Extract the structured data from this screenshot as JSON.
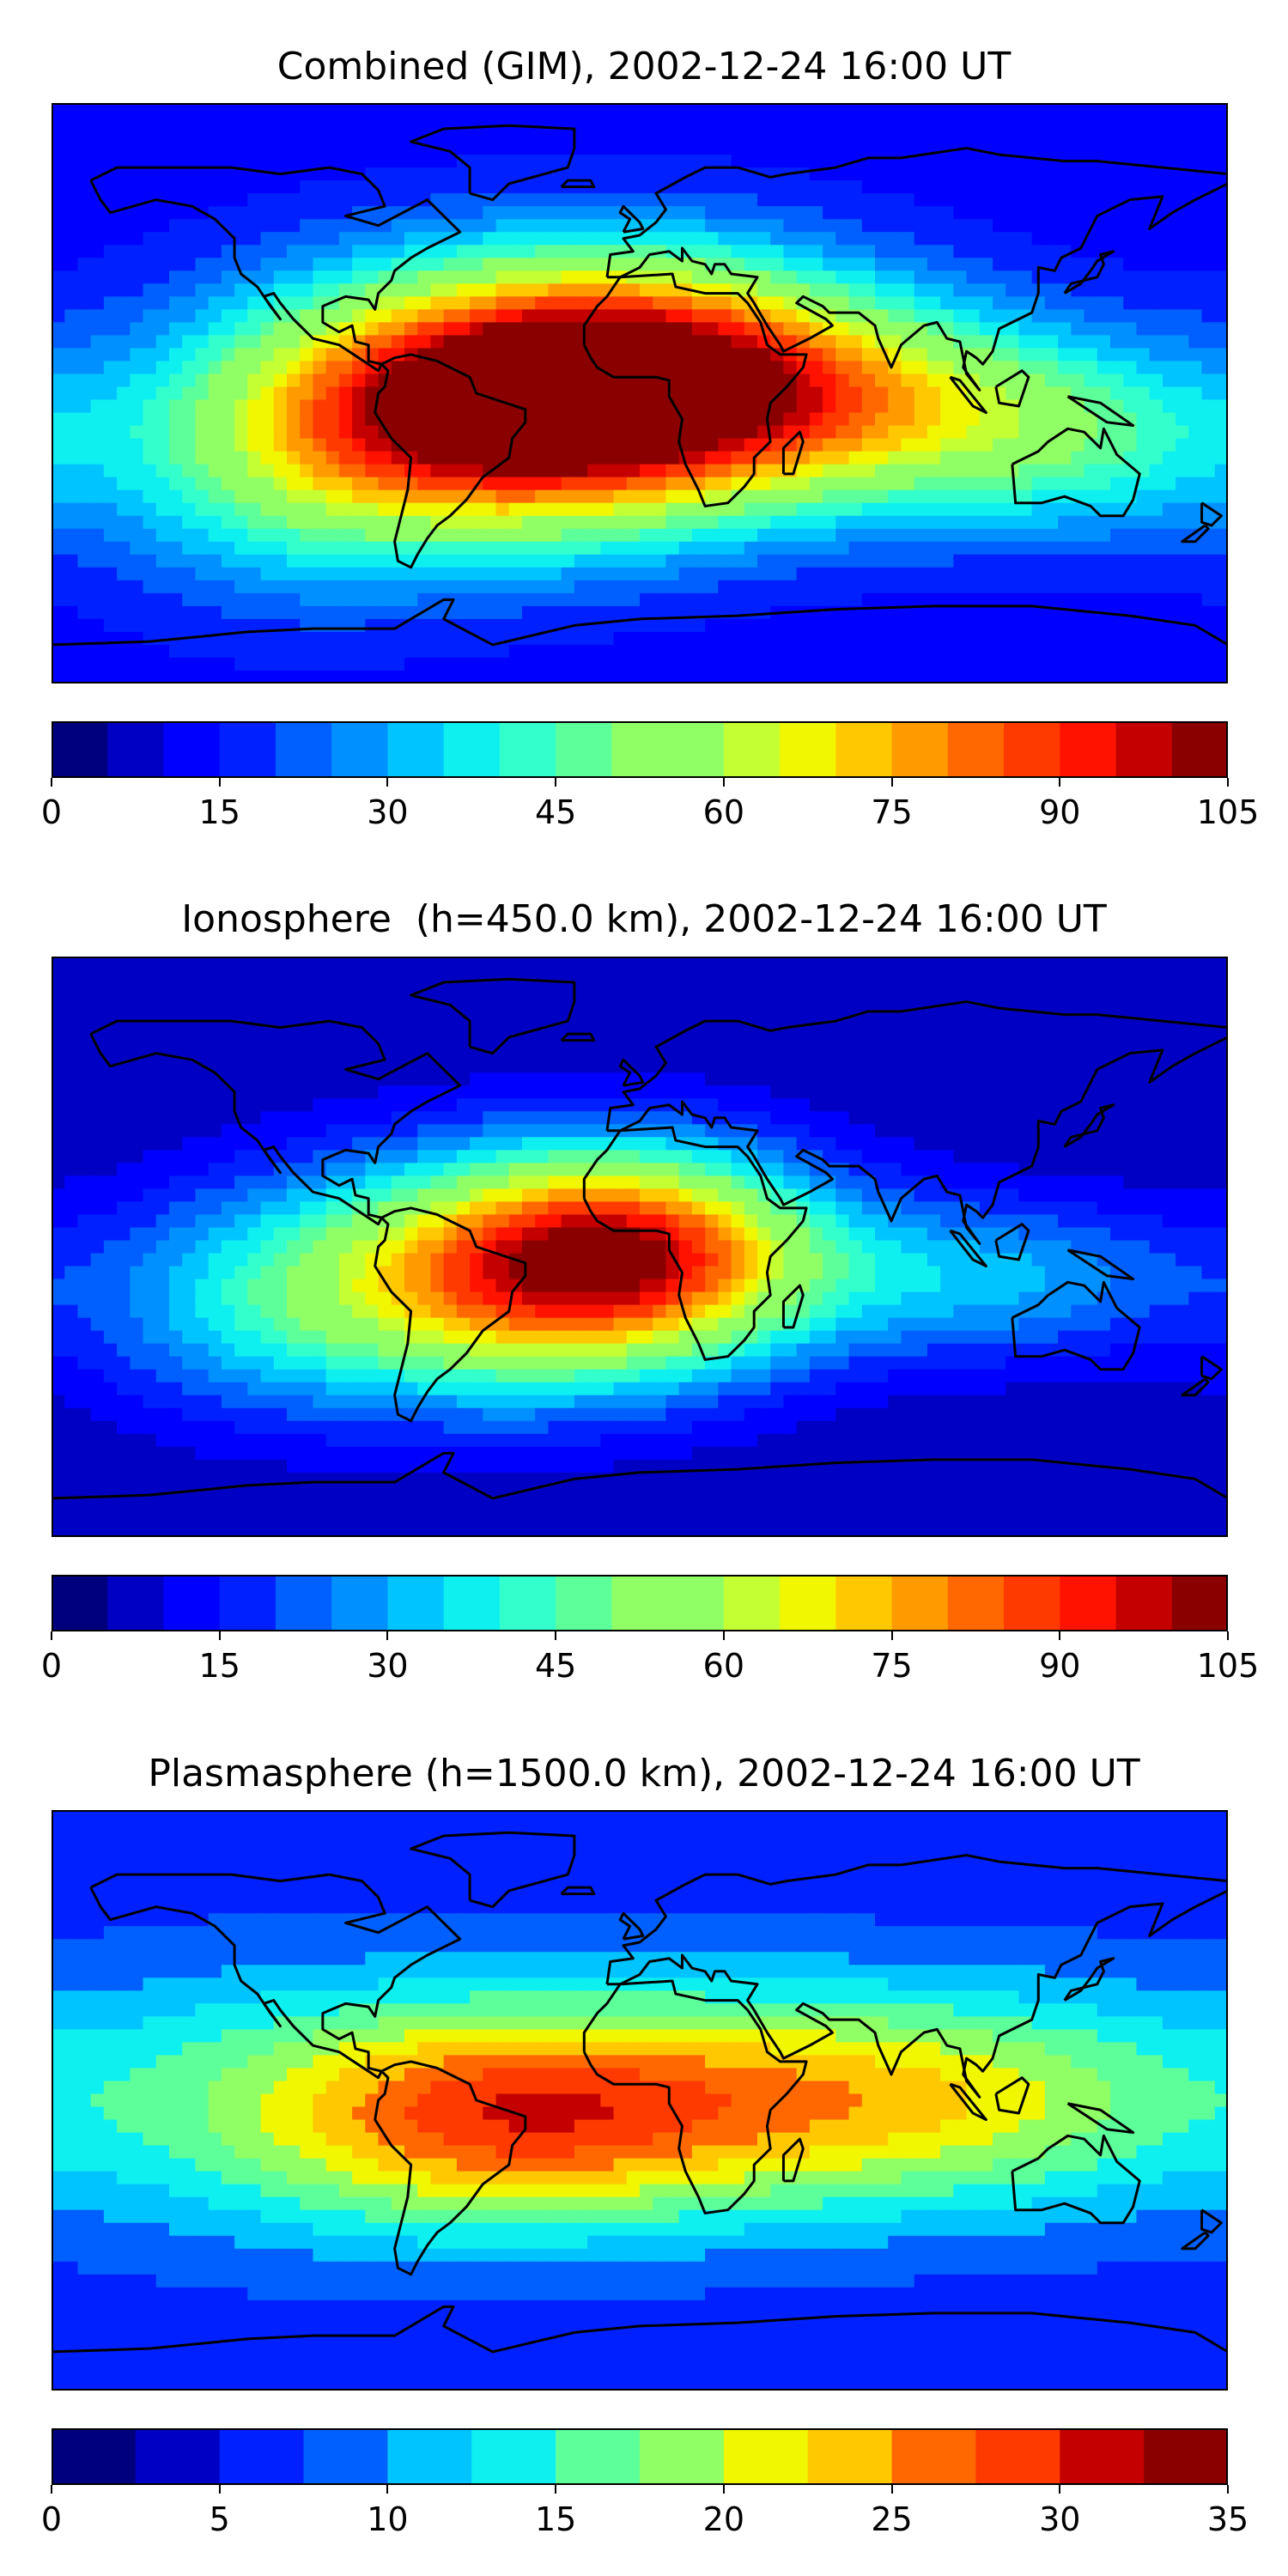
{
  "panels": [
    {
      "title": "Combined (GIM), 2002-12-24 16:00 UT",
      "colorbar": {
        "min": 0,
        "max": 105,
        "step": 5,
        "ticks": [
          "0",
          "15",
          "30",
          "45",
          "60",
          "75",
          "90",
          "105"
        ]
      },
      "field": [
        {
          "lon": -50,
          "lat": -5,
          "value": 88,
          "spread_lon": 55,
          "spread_lat": 28
        },
        {
          "lon": 5,
          "lat": 5,
          "value": 82,
          "spread_lon": 50,
          "spread_lat": 26
        },
        {
          "lon": 80,
          "lat": -5,
          "value": 45,
          "spread_lon": 45,
          "spread_lat": 22
        },
        {
          "lon": 140,
          "lat": -15,
          "value": 35,
          "spread_lon": 40,
          "spread_lat": 22
        },
        {
          "lon": -110,
          "lat": -25,
          "value": 30,
          "spread_lon": 40,
          "spread_lat": 30
        }
      ],
      "base_value": 12
    },
    {
      "title": "Ionosphere  (h=450.0 km), 2002-12-24 16:00 UT",
      "colorbar": {
        "min": 0,
        "max": 105,
        "step": 5,
        "ticks": [
          "0",
          "15",
          "30",
          "45",
          "60",
          "75",
          "90",
          "105"
        ]
      },
      "field": [
        {
          "lon": -40,
          "lat": -10,
          "value": 68,
          "spread_lon": 55,
          "spread_lat": 26
        },
        {
          "lon": 0,
          "lat": 0,
          "value": 58,
          "spread_lon": 40,
          "spread_lat": 22
        },
        {
          "lon": 110,
          "lat": -10,
          "value": 30,
          "spread_lon": 45,
          "spread_lat": 18
        },
        {
          "lon": -120,
          "lat": -20,
          "value": 22,
          "spread_lon": 40,
          "spread_lat": 25
        }
      ],
      "base_value": 5
    },
    {
      "title": "Plasmasphere (h=1500.0 km), 2002-12-24 16:00 UT",
      "colorbar": {
        "min": 0,
        "max": 35,
        "step": 2.5,
        "ticks": [
          "0",
          "5",
          "10",
          "15",
          "20",
          "25",
          "30",
          "35"
        ]
      },
      "field": [
        {
          "lon": -45,
          "lat": -5,
          "value": 23,
          "spread_lon": 50,
          "spread_lat": 25
        },
        {
          "lon": 30,
          "lat": 0,
          "value": 18,
          "spread_lon": 55,
          "spread_lat": 25
        },
        {
          "lon": 110,
          "lat": 0,
          "value": 17,
          "spread_lon": 55,
          "spread_lat": 25
        },
        {
          "lon": -120,
          "lat": 0,
          "value": 13,
          "spread_lon": 50,
          "spread_lat": 30
        }
      ],
      "base_value": 6
    }
  ],
  "colormap": [
    "#00007f",
    "#0000c4",
    "#0000ff",
    "#0020ff",
    "#0060ff",
    "#0090ff",
    "#00c4ff",
    "#0ef0f0",
    "#33ffcc",
    "#5dff9a",
    "#90ff66",
    "#c4ff33",
    "#f0f700",
    "#ffc800",
    "#ff9a00",
    "#ff6800",
    "#ff3a00",
    "#ff1300",
    "#c40000",
    "#8a0000"
  ],
  "coastline_color": "#000000"
}
